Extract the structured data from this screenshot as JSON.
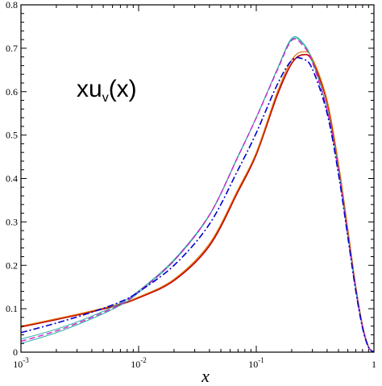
{
  "chart_data": {
    "type": "line",
    "title": "",
    "xlabel": "x",
    "ylabel": "",
    "xscale": "log",
    "xlim": [
      0.001,
      1
    ],
    "ylim": [
      0,
      0.8
    ],
    "grid": false,
    "legend": "none",
    "x_ticks": [
      {
        "value": 0.001,
        "base": "10",
        "exp": "-3"
      },
      {
        "value": 0.01,
        "base": "10",
        "exp": "-2"
      },
      {
        "value": 0.1,
        "base": "10",
        "exp": "-1"
      },
      {
        "value": 1,
        "base": "1",
        "exp": ""
      }
    ],
    "y_ticks": [
      {
        "value": 0,
        "label": "0"
      },
      {
        "value": 0.1,
        "label": "0.1"
      },
      {
        "value": 0.2,
        "label": "0.2"
      },
      {
        "value": 0.3,
        "label": "0.3"
      },
      {
        "value": 0.4,
        "label": "0.4"
      },
      {
        "value": 0.5,
        "label": "0.5"
      },
      {
        "value": 0.6,
        "label": "0.6"
      },
      {
        "value": 0.7,
        "label": "0.7"
      },
      {
        "value": 0.8,
        "label": "0.8"
      }
    ],
    "annotation": {
      "main": "xu",
      "sub": "v",
      "tail": "(x)"
    },
    "series": [
      {
        "color": "#c00000",
        "dash": "solid",
        "width": 1.6,
        "x": [
          0.001,
          0.002,
          0.004,
          0.007,
          0.01,
          0.02,
          0.04,
          0.07,
          0.1,
          0.15,
          0.2,
          0.25,
          0.3,
          0.4,
          0.5,
          0.6,
          0.7,
          0.8,
          0.9,
          1.0
        ],
        "y": [
          0.058,
          0.075,
          0.093,
          0.11,
          0.125,
          0.165,
          0.245,
          0.37,
          0.455,
          0.59,
          0.665,
          0.685,
          0.67,
          0.575,
          0.43,
          0.28,
          0.15,
          0.06,
          0.012,
          0.0
        ]
      },
      {
        "color": "#e07000",
        "dash": "solid",
        "width": 1.2,
        "x": [
          0.001,
          0.002,
          0.004,
          0.007,
          0.01,
          0.02,
          0.04,
          0.07,
          0.1,
          0.15,
          0.2,
          0.25,
          0.3,
          0.4,
          0.5,
          0.6,
          0.7,
          0.8,
          0.9,
          1.0
        ],
        "y": [
          0.06,
          0.077,
          0.095,
          0.112,
          0.127,
          0.168,
          0.25,
          0.375,
          0.46,
          0.597,
          0.673,
          0.692,
          0.676,
          0.58,
          0.433,
          0.282,
          0.151,
          0.06,
          0.012,
          0.0
        ]
      },
      {
        "color": "#2ab0a0",
        "dash": "solid",
        "width": 1.0,
        "x": [
          0.001,
          0.002,
          0.004,
          0.007,
          0.01,
          0.02,
          0.04,
          0.07,
          0.1,
          0.15,
          0.2,
          0.25,
          0.3,
          0.4,
          0.5,
          0.6,
          0.7,
          0.8,
          0.9,
          1.0
        ],
        "y": [
          0.02,
          0.045,
          0.077,
          0.108,
          0.137,
          0.21,
          0.315,
          0.45,
          0.54,
          0.65,
          0.72,
          0.71,
          0.67,
          0.56,
          0.42,
          0.27,
          0.145,
          0.058,
          0.011,
          0.0
        ]
      },
      {
        "color": "#2ab0a0",
        "dash": "solid",
        "width": 1.0,
        "x": [
          0.001,
          0.002,
          0.004,
          0.007,
          0.01,
          0.02,
          0.04,
          0.07,
          0.1,
          0.15,
          0.2,
          0.25,
          0.3,
          0.4,
          0.5,
          0.6,
          0.7,
          0.8,
          0.9,
          1.0
        ],
        "y": [
          0.03,
          0.053,
          0.083,
          0.113,
          0.141,
          0.213,
          0.317,
          0.452,
          0.541,
          0.651,
          0.723,
          0.712,
          0.671,
          0.561,
          0.421,
          0.271,
          0.146,
          0.058,
          0.011,
          0.0
        ]
      },
      {
        "color": "#d020d0",
        "dash": "dash",
        "width": 1.4,
        "x": [
          0.001,
          0.002,
          0.004,
          0.007,
          0.01,
          0.02,
          0.04,
          0.07,
          0.1,
          0.15,
          0.2,
          0.25,
          0.3,
          0.4,
          0.5,
          0.6,
          0.7,
          0.8,
          0.9,
          1.0
        ],
        "y": [
          0.025,
          0.049,
          0.08,
          0.11,
          0.139,
          0.211,
          0.316,
          0.451,
          0.54,
          0.648,
          0.718,
          0.706,
          0.667,
          0.557,
          0.418,
          0.268,
          0.144,
          0.057,
          0.011,
          0.0
        ]
      },
      {
        "color": "#0000cc",
        "dash": "dashdot",
        "width": 1.6,
        "x": [
          0.001,
          0.002,
          0.004,
          0.007,
          0.01,
          0.02,
          0.04,
          0.07,
          0.1,
          0.15,
          0.2,
          0.25,
          0.3,
          0.4,
          0.5,
          0.6,
          0.7,
          0.8,
          0.9,
          1.0
        ],
        "y": [
          0.045,
          0.067,
          0.092,
          0.116,
          0.139,
          0.2,
          0.295,
          0.42,
          0.505,
          0.615,
          0.672,
          0.675,
          0.652,
          0.55,
          0.41,
          0.265,
          0.142,
          0.056,
          0.011,
          0.0
        ]
      }
    ]
  }
}
